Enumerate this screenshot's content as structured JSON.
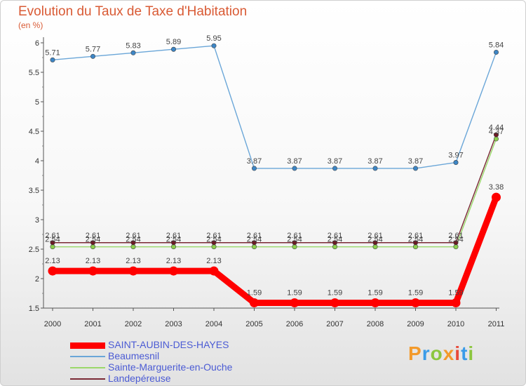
{
  "header": {
    "title": "Evolution du Taux de Taxe d'Habitation",
    "subtitle": "(en %)"
  },
  "logo": {
    "text": "Proxiti",
    "colors": [
      "#f39a2b",
      "#3a9be8",
      "#8cc63f",
      "#f39a2b",
      "#e84b3a",
      "#3a9be8",
      "#8cc63f"
    ]
  },
  "chart_data": {
    "type": "line",
    "title": "Evolution du Taux de Taxe d'Habitation",
    "subtitle": "(en %)",
    "xlabel": "",
    "ylabel": "(en %)",
    "x": [
      "2000",
      "2001",
      "2002",
      "2003",
      "2004",
      "2005",
      "2006",
      "2007",
      "2008",
      "2009",
      "2010",
      "2011"
    ],
    "ylim": [
      1.5,
      6
    ],
    "yticks": [
      "1.5",
      "2",
      "2.5",
      "3",
      "3.5",
      "4",
      "4.5",
      "5",
      "5.5",
      "6"
    ],
    "grid": false,
    "legend_position": "bottom-left",
    "series": [
      {
        "name": "SAINT-AUBIN-DES-HAYES",
        "color": "#ff0000",
        "values": [
          2.13,
          2.13,
          2.13,
          2.13,
          2.13,
          1.59,
          1.59,
          1.59,
          1.59,
          1.59,
          1.59,
          3.38
        ],
        "labels": [
          "2.13",
          "2.13",
          "2.13",
          "2.13",
          "2.13",
          "1.59",
          "1.59",
          "1.59",
          "1.59",
          "1.59",
          "1.59",
          "3.38"
        ]
      },
      {
        "name": "Beaumesnil",
        "color": "#6aa6d8",
        "values": [
          5.71,
          5.77,
          5.83,
          5.89,
          5.95,
          3.87,
          3.87,
          3.87,
          3.87,
          3.87,
          3.97,
          5.84
        ],
        "labels": [
          "5.71",
          "5.77",
          "5.83",
          "5.89",
          "5.95",
          "3.87",
          "3.87",
          "3.87",
          "3.87",
          "3.87",
          "3.97",
          "5.84"
        ]
      },
      {
        "name": "Sainte-Marguerite-en-Ouche",
        "color": "#9ad86a",
        "values": [
          2.54,
          2.54,
          2.54,
          2.54,
          2.54,
          2.54,
          2.54,
          2.54,
          2.54,
          2.54,
          2.54,
          4.37
        ],
        "labels": [
          "2.54",
          "2.54",
          "2.54",
          "2.54",
          "2.54",
          "2.54",
          "2.54",
          "2.54",
          "2.54",
          "2.54",
          "2.54",
          "4.37"
        ]
      },
      {
        "name": "Landepéreuse",
        "color": "#7a2a35",
        "values": [
          2.61,
          2.61,
          2.61,
          2.61,
          2.61,
          2.61,
          2.61,
          2.61,
          2.61,
          2.61,
          2.61,
          4.44
        ],
        "labels": [
          "2.61",
          "2.61",
          "2.61",
          "2.61",
          "2.61",
          "2.61",
          "2.61",
          "2.61",
          "2.61",
          "2.61",
          "2.61",
          "4.44"
        ]
      }
    ]
  }
}
